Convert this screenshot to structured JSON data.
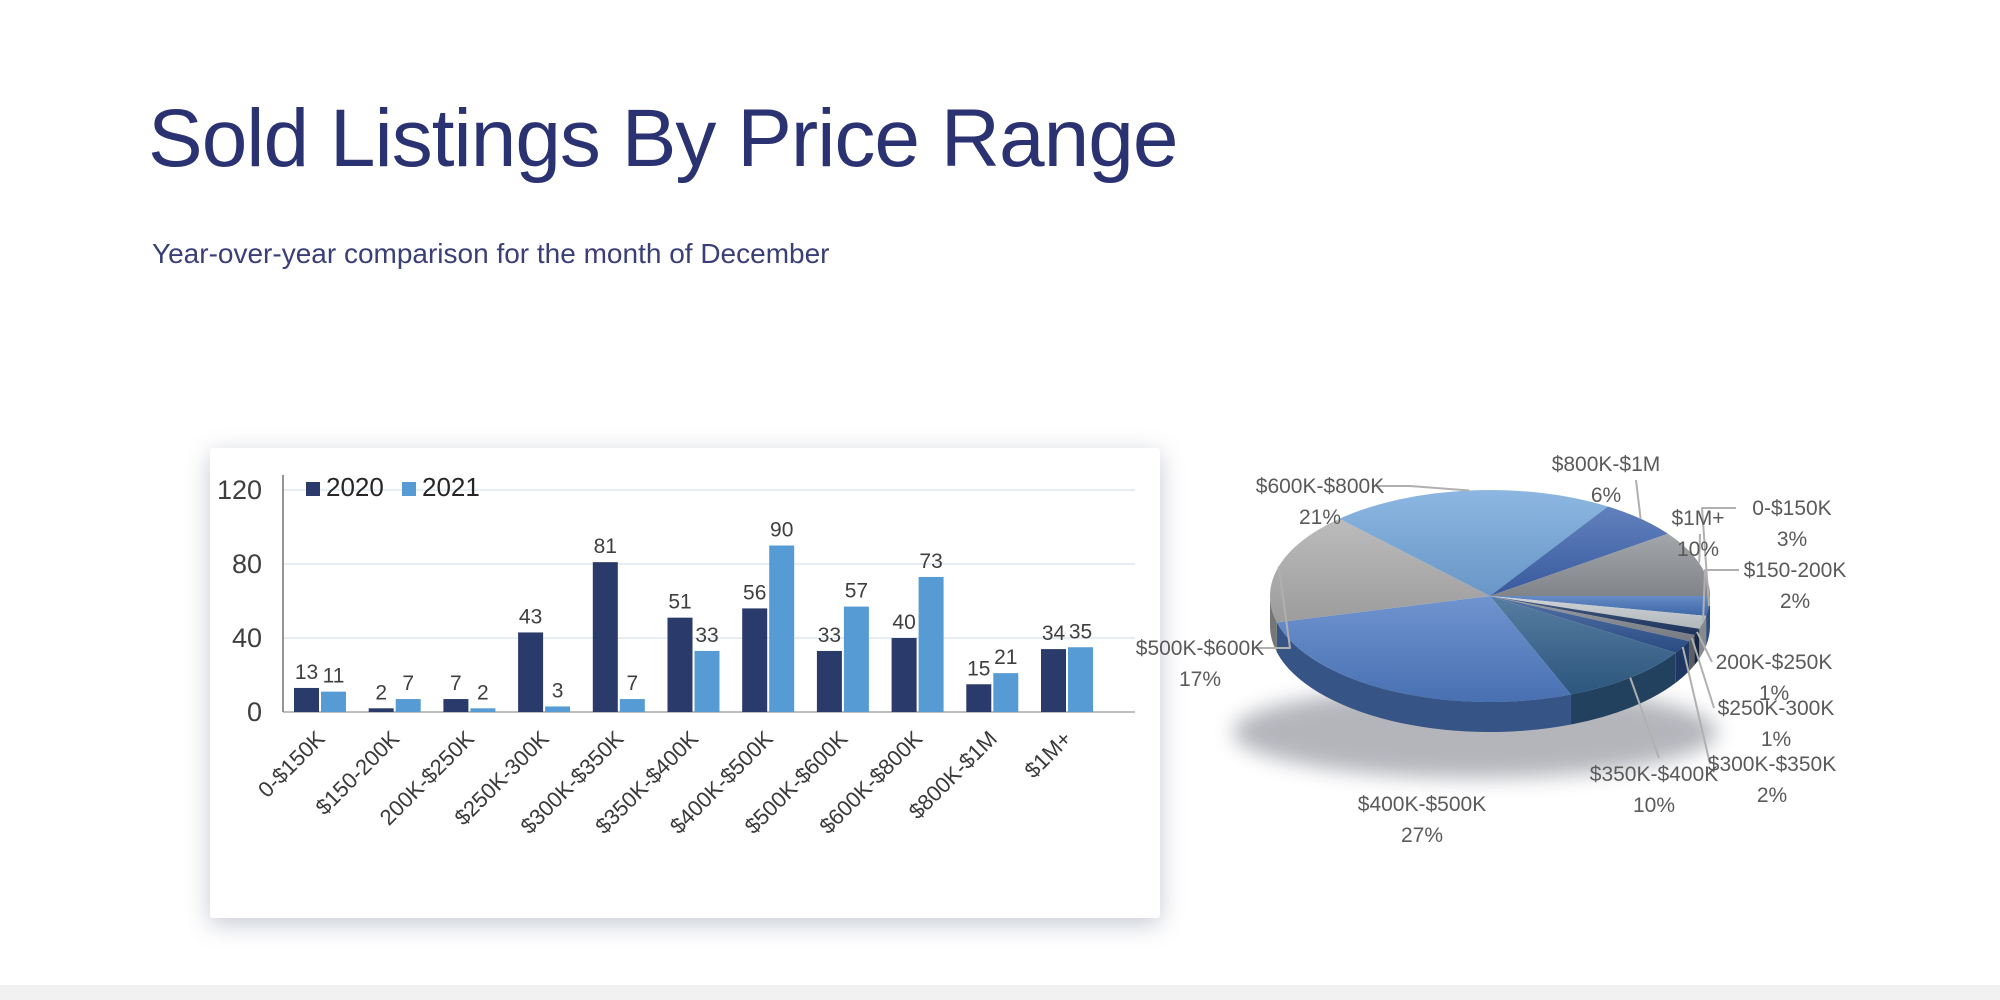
{
  "page": {
    "title": "Sold Listings By Price Range",
    "subtitle": "Year-over-year comparison for the month of December",
    "title_color": "#2b3272"
  },
  "chart_data": [
    {
      "type": "bar",
      "title": "",
      "categories": [
        "0-$150K",
        "$150-200K",
        "200K-$250K",
        "$250K-300K",
        "$300K-$350K",
        "$350K-$400K",
        "$400K-$500K",
        "$500K-$600K",
        "$600K-$800K",
        "$800K-$1M",
        "$1M+"
      ],
      "series": [
        {
          "name": "2020",
          "color": "#2a3a6a",
          "values": [
            13,
            2,
            7,
            43,
            81,
            51,
            56,
            33,
            40,
            15,
            34
          ]
        },
        {
          "name": "2021",
          "color": "#579bd5",
          "values": [
            11,
            7,
            2,
            3,
            7,
            33,
            90,
            57,
            73,
            21,
            35
          ]
        }
      ],
      "ylim": [
        0,
        120
      ],
      "yticks": [
        0,
        40,
        80,
        120
      ],
      "grid": true,
      "data_labels": true,
      "legend_position": "top-left"
    },
    {
      "type": "pie",
      "style": "3d",
      "unit": "%",
      "labels": [
        "0-$150K",
        "$150-200K",
        "200K-$250K",
        "$250K-300K",
        "$300K-$350K",
        "$350K-$400K",
        "$400K-$500K",
        "$500K-$600K",
        "$600K-$800K",
        "$800K-$1M",
        "$1M+"
      ],
      "values": [
        3,
        2,
        1,
        1,
        2,
        10,
        27,
        17,
        21,
        6,
        10
      ],
      "colors": [
        "#4472b8",
        "#c6cbd0",
        "#1f3864",
        "#84898f",
        "#2d5391",
        "#32608c",
        "#507cc5",
        "#adadae",
        "#74a7dc",
        "#3e64ae",
        "#8f9397"
      ],
      "label_color": "#5a5a5a",
      "leader_line_color": "#b0b0b0"
    }
  ]
}
